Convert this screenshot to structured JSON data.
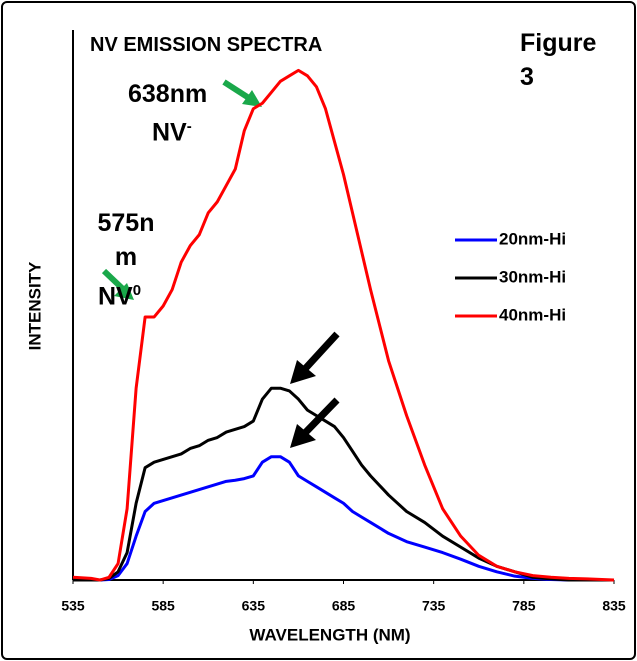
{
  "chart_data": {
    "type": "line",
    "title": "NV EMISSION SPECTRA",
    "x_label": "WAVELENGTH (NM)",
    "y_label": "INTENSITY",
    "annotations": [
      {
        "text": "Figure 3"
      },
      {
        "text": "638nm"
      },
      {
        "text": "NV",
        "superscript": "-"
      },
      {
        "text": "575nm"
      },
      {
        "text": "NV",
        "superscript": "0"
      }
    ],
    "x": [
      535,
      545,
      550,
      555,
      560,
      565,
      570,
      575,
      580,
      585,
      590,
      595,
      600,
      605,
      610,
      615,
      620,
      625,
      630,
      635,
      640,
      645,
      650,
      655,
      660,
      665,
      670,
      675,
      680,
      685,
      690,
      695,
      700,
      710,
      720,
      730,
      740,
      750,
      760,
      770,
      780,
      790,
      800,
      810,
      820,
      835
    ],
    "series": [
      {
        "name": "20nm-Hi",
        "color": "#0000ff",
        "values": [
          0,
          0,
          0,
          0.1,
          0.8,
          3,
          8,
          12.5,
          14,
          14.5,
          15,
          15.5,
          16,
          16.5,
          17,
          17.5,
          18,
          18.2,
          18.5,
          19,
          21.5,
          22.5,
          22.5,
          21.5,
          19,
          18,
          17,
          16,
          15,
          14,
          12.5,
          11.5,
          10.5,
          8.5,
          7,
          6,
          5,
          3.8,
          2.5,
          1.5,
          0.7,
          0.3,
          0.1,
          0,
          0,
          0
        ]
      },
      {
        "name": "30nm-Hi",
        "color": "#000000",
        "values": [
          0,
          0,
          0,
          0.3,
          1.5,
          5,
          14,
          20.5,
          21.5,
          22,
          22.5,
          23,
          24,
          24.5,
          25.5,
          26,
          27,
          27.5,
          28,
          29,
          33,
          35,
          35,
          34.5,
          33,
          31,
          30,
          29,
          28,
          26,
          23.5,
          21,
          19,
          15.5,
          12.5,
          10.5,
          8,
          6,
          4,
          2.5,
          1.5,
          0.5,
          0.2,
          0,
          0,
          0
        ]
      },
      {
        "name": "40nm-Hi",
        "color": "#ff0000",
        "values": [
          0.5,
          0.3,
          0,
          0.5,
          3,
          13,
          35,
          48,
          48,
          50,
          53,
          58,
          61,
          63,
          67,
          69,
          72,
          75,
          82,
          86,
          87,
          89,
          91,
          92,
          93,
          92,
          90,
          86,
          80,
          74,
          67,
          60,
          53,
          40,
          30,
          21,
          13,
          8,
          4.5,
          2.5,
          1.5,
          0.8,
          0.5,
          0.3,
          0.2,
          0
        ]
      }
    ],
    "xlim": [
      535,
      835
    ],
    "xticks": [
      535,
      585,
      635,
      685,
      735,
      785,
      835
    ],
    "ylim": [
      0,
      100
    ],
    "grid": false,
    "legend_position": "right"
  }
}
